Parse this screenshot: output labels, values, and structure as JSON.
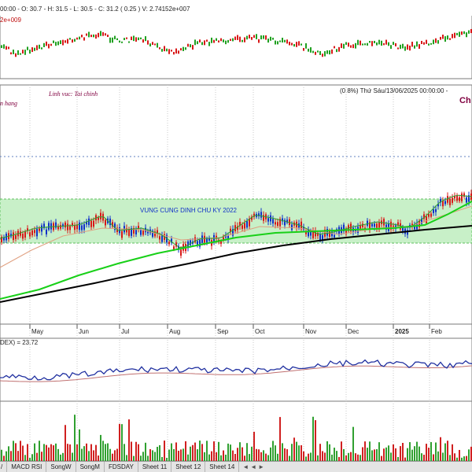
{
  "top_panel": {
    "ohlc_text": "00:00 - O: 30.7 - H: 31.5 - L: 30.5 - C: 31.2 ( 0.25 ) V: 2.74152e+007",
    "secondary_value": "2e+009"
  },
  "main_panel": {
    "sector_label": "Linh vuc: Tai chinh",
    "industry_label": "n hang",
    "info_text": "(0.8%) Thứ Sáu/13/06/2025 00:00:00 -",
    "corner_text": "Ch",
    "zone_label": "VUNG CUNG DINH CHU KY 2022",
    "months": [
      "May",
      "Jun",
      "Jul",
      "Aug",
      "Sep",
      "Oct",
      "Nov",
      "Dec",
      "2025",
      "Feb"
    ]
  },
  "indicator_panel": {
    "label": "DEX) = 23.72"
  },
  "tabs": [
    "/",
    "MACD RSI",
    "SongW",
    "SongM",
    "FDSDAY",
    "Sheet 11",
    "Sheet 12",
    "Sheet 14"
  ],
  "tab_nav": [
    "◄",
    "◄",
    "►"
  ],
  "colors": {
    "up_candle": "#1030c8",
    "down_candle": "#d81818",
    "zone_fill": "#c8f0c8",
    "ma_long": "#000000",
    "ma_mid": "#18d018",
    "ma_short": "#e0a080",
    "indicator_line": "#2030a0",
    "indicator_signal": "#c07070",
    "volume_bar_up": "#30a030",
    "volume_bar_down": "#d02020"
  }
}
